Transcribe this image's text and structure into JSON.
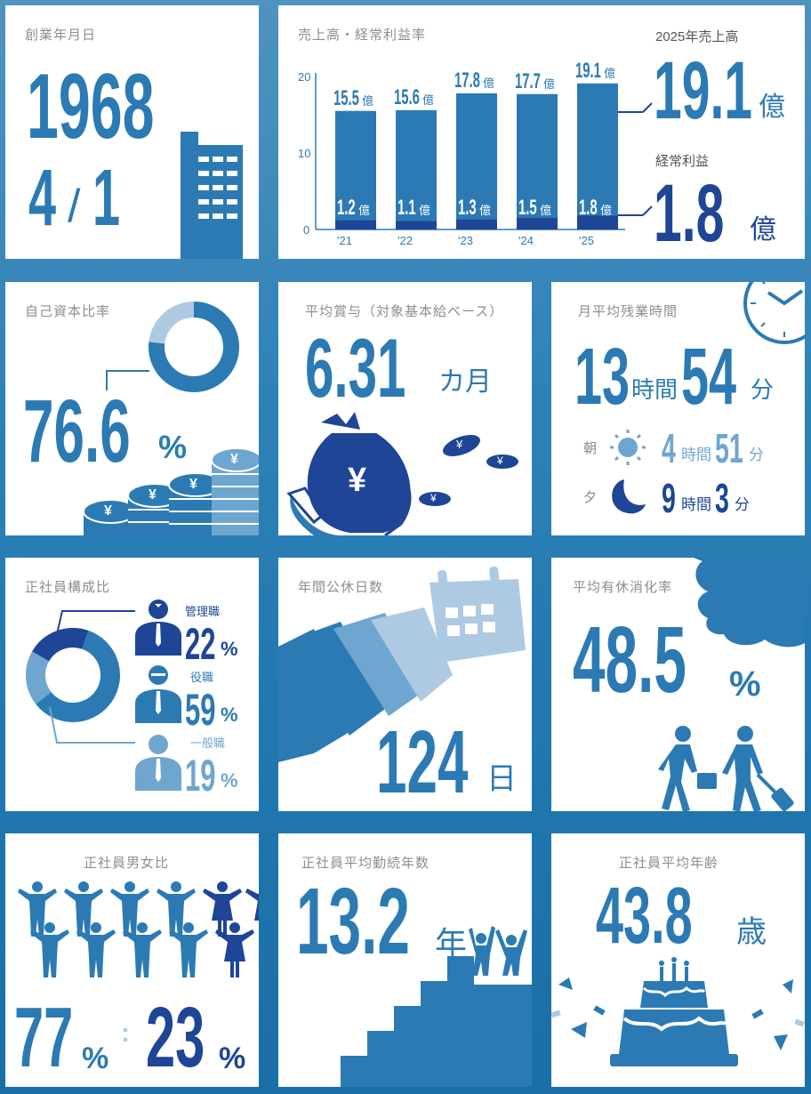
{
  "founding": {
    "label": "創業年月日",
    "year": "1968",
    "month": "4",
    "slash": "/",
    "day": "1"
  },
  "sales": {
    "label": "売上高・経常利益率",
    "y_ticks": [
      "20",
      "10",
      "0"
    ],
    "sales_title": "2025年売上高",
    "sales_value": "19.1",
    "profit_title": "経常利益",
    "profit_value": "1.8",
    "unit": "億"
  },
  "chart_data": {
    "type": "bar",
    "categories": [
      "'21",
      "'22",
      "'23",
      "'24",
      "'25"
    ],
    "series": [
      {
        "values": [
          15.5,
          15.6,
          17.8,
          17.7,
          19.1
        ]
      },
      {
        "values": [
          1.2,
          1.1,
          1.3,
          1.5,
          1.8
        ]
      }
    ],
    "value_labels_sales": [
      "15.5",
      "15.6",
      "17.8",
      "17.7",
      "19.1"
    ],
    "value_labels_profit": [
      "1.2",
      "1.1",
      "1.3",
      "1.5",
      "1.8"
    ],
    "unit": "億",
    "ylim": [
      0,
      20
    ],
    "colors": {
      "sales": "#2c7ab3",
      "profit": "#1e4596"
    }
  },
  "equity": {
    "label": "自己資本比率",
    "value": "76.6",
    "unit": "%",
    "ratio": 0.766,
    "coin_symbol": "¥"
  },
  "bonus": {
    "label": "平均賞与（対象基本給ベース）",
    "value": "6.31",
    "unit": "カ月",
    "yen": "¥"
  },
  "overtime": {
    "label": "月平均残業時間",
    "hours": "13",
    "h_unit": "時間",
    "minutes": "54",
    "m_unit": "分",
    "morning": {
      "label": "朝",
      "hours": "4",
      "h_unit": "時間",
      "minutes": "51",
      "m_unit": "分"
    },
    "evening": {
      "label": "夕",
      "hours": "9",
      "h_unit": "時間",
      "minutes": "3",
      "m_unit": "分"
    }
  },
  "composition": {
    "label": "正社員構成比",
    "pct_unit": "%",
    "items": [
      {
        "name": "管理職",
        "value": "22",
        "ratio": 0.22,
        "color": "#1e4596"
      },
      {
        "name": "役職",
        "value": "59",
        "ratio": 0.59,
        "color": "#2c7ab3"
      },
      {
        "name": "一般職",
        "value": "19",
        "ratio": 0.19,
        "color": "#6ea6d0"
      }
    ]
  },
  "holidays": {
    "label": "年間公休日数",
    "value": "124",
    "unit": "日"
  },
  "leave": {
    "label": "平均有休消化率",
    "value": "48.5",
    "unit": "%"
  },
  "gender": {
    "label": "正社員男女比",
    "male": "77",
    "female": "23",
    "unit": "%",
    "colon": ":"
  },
  "tenure": {
    "label": "正社員平均勤続年数",
    "value": "13.2",
    "unit": "年"
  },
  "age": {
    "label": "正社員平均年齢",
    "value": "43.8",
    "unit": "歳"
  }
}
